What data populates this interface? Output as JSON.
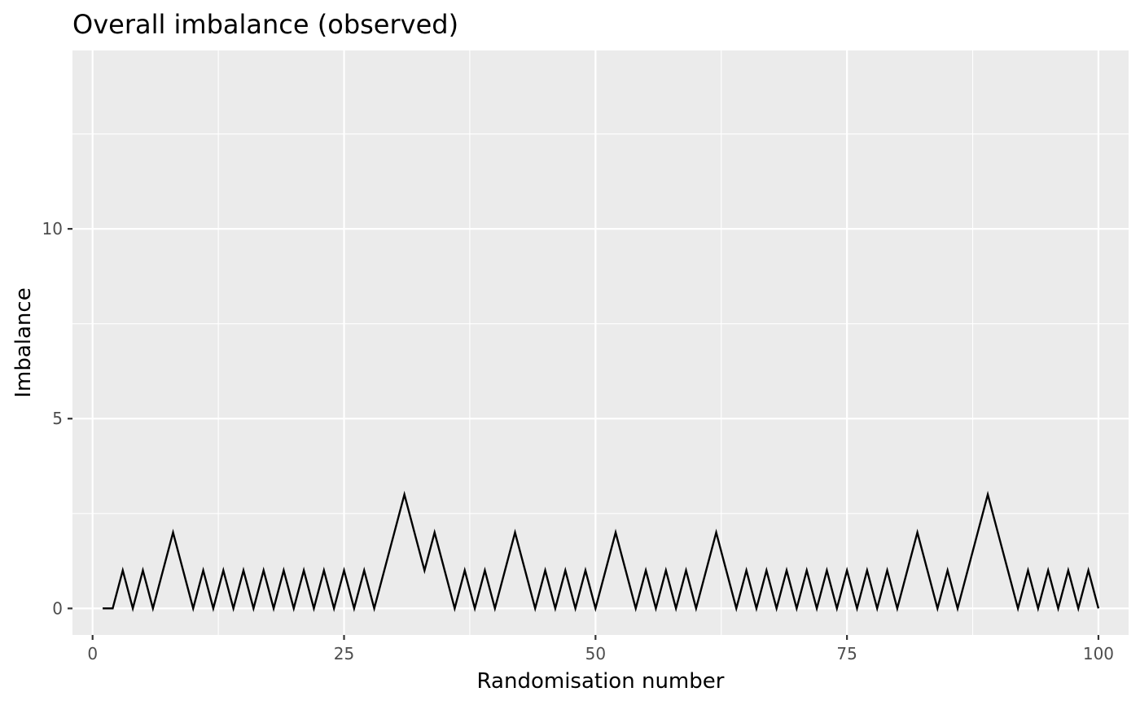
{
  "chart_data": {
    "type": "line",
    "title": "Overall imbalance (observed)",
    "xlabel": "Randomisation number",
    "ylabel": "Imbalance",
    "xlim": [
      -2,
      103
    ],
    "ylim": [
      -0.7,
      14.7
    ],
    "x_ticks": [
      0,
      25,
      50,
      75,
      100
    ],
    "x_tick_labels": [
      "0",
      "25",
      "50",
      "75",
      "100"
    ],
    "y_ticks": [
      0,
      5,
      10
    ],
    "y_tick_labels": [
      "0",
      "5",
      "10"
    ],
    "grid": true,
    "legend": "none",
    "colors": {
      "panel": "#ebebeb",
      "grid": "#ffffff",
      "line": "#000000",
      "tick": "#333333"
    },
    "series": [
      {
        "x": [
          1,
          2,
          3,
          4,
          5,
          6,
          7,
          8,
          9,
          10,
          11,
          12,
          13,
          14,
          15,
          16,
          17,
          18,
          19,
          20,
          21,
          22,
          23,
          24,
          25,
          26,
          27,
          28,
          29,
          30,
          31,
          32,
          33,
          34,
          35,
          36,
          37,
          38,
          39,
          40,
          41,
          42,
          43,
          44,
          45,
          46,
          47,
          48,
          49,
          50,
          51,
          52,
          53,
          54,
          55,
          56,
          57,
          58,
          59,
          60,
          61,
          62,
          63,
          64,
          65,
          66,
          67,
          68,
          69,
          70,
          71,
          72,
          73,
          74,
          75,
          76,
          77,
          78,
          79,
          80,
          81,
          82,
          83,
          84,
          85,
          86,
          87,
          88,
          89,
          90,
          91,
          92,
          93,
          94,
          95,
          96,
          97,
          98,
          99,
          100
        ],
        "values": [
          0,
          0,
          1,
          0,
          1,
          0,
          1,
          2,
          1,
          0,
          1,
          0,
          1,
          0,
          1,
          0,
          1,
          0,
          1,
          0,
          1,
          0,
          1,
          0,
          1,
          0,
          1,
          0,
          1,
          2,
          3,
          2,
          1,
          2,
          1,
          0,
          1,
          0,
          1,
          0,
          1,
          2,
          1,
          0,
          1,
          0,
          1,
          0,
          1,
          0,
          1,
          2,
          1,
          0,
          1,
          0,
          1,
          0,
          1,
          0,
          1,
          2,
          1,
          0,
          1,
          0,
          1,
          0,
          1,
          0,
          1,
          0,
          1,
          0,
          1,
          0,
          1,
          0,
          1,
          0,
          1,
          2,
          1,
          0,
          1,
          0,
          1,
          2,
          3,
          2,
          1,
          0,
          1,
          0,
          1,
          0,
          1,
          0,
          1,
          0
        ]
      }
    ]
  }
}
